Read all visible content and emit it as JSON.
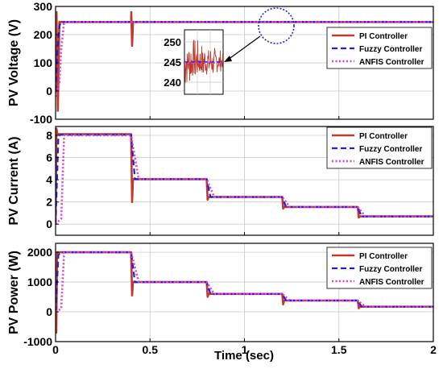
{
  "colors": {
    "pi": "#c0392b",
    "fuzzy": "#1f1fd6",
    "anfis": "#d63fe0",
    "grid": "#c8c8c8",
    "zoom_circle": "#1f1fd6"
  },
  "x_axis": {
    "label": "Time (sec)",
    "ticks": [
      "0",
      "0.5",
      "1",
      "1.5",
      "2"
    ],
    "range": [
      0,
      2
    ]
  },
  "chart_data": [
    {
      "type": "line",
      "ylabel": "PV Voltage (V)",
      "ylim": [
        -100,
        300
      ],
      "yticks": [
        "300",
        "200",
        "100",
        "0",
        "-100"
      ],
      "grid": true,
      "legend_position": "right",
      "series": [
        {
          "name": "PI Controller",
          "style": "solid",
          "x": [
            0,
            0.005,
            0.012,
            0.02,
            0.4,
            0.401,
            0.405,
            0.41,
            2.0
          ],
          "values": [
            0,
            280,
            -70,
            245,
            245,
            280,
            160,
            245,
            245
          ]
        },
        {
          "name": "Fuzzy Controller",
          "style": "dashed",
          "x": [
            0,
            0.01,
            0.02,
            0.03,
            2.0
          ],
          "values": [
            0,
            150,
            230,
            245,
            245
          ]
        },
        {
          "name": "ANFIS Controller",
          "style": "dotted",
          "x": [
            0,
            0.02,
            0.03,
            0.045,
            2.0
          ],
          "values": [
            -20,
            30,
            150,
            245,
            245
          ]
        }
      ],
      "inset": {
        "yticks": [
          "250",
          "245",
          "240"
        ],
        "ylim": [
          237,
          253
        ],
        "center": 245
      }
    },
    {
      "type": "line",
      "ylabel": "PV Current (A)",
      "ylim": [
        -1,
        8.8
      ],
      "yticks": [
        "8",
        "6",
        "4",
        "2",
        "0"
      ],
      "grid": true,
      "legend_position": "top-right",
      "series": [
        {
          "name": "PI Controller",
          "style": "solid",
          "x": [
            0,
            0.005,
            0.01,
            0.4,
            0.405,
            0.41,
            0.8,
            0.805,
            0.81,
            1.2,
            1.205,
            1.21,
            1.6,
            1.605,
            1.61,
            2.0
          ],
          "values": [
            0,
            8.6,
            8.1,
            8.1,
            2.0,
            4.05,
            4.05,
            2.2,
            2.45,
            2.45,
            1.4,
            1.55,
            1.55,
            0.6,
            0.7,
            0.7
          ]
        },
        {
          "name": "Fuzzy Controller",
          "style": "dashed",
          "x": [
            0,
            0.015,
            0.025,
            0.4,
            0.42,
            0.8,
            0.82,
            1.2,
            1.22,
            1.6,
            1.62,
            2.0
          ],
          "values": [
            0,
            7.9,
            8.05,
            8.05,
            4.05,
            4.05,
            2.45,
            2.45,
            1.55,
            1.55,
            0.7,
            0.7
          ]
        },
        {
          "name": "ANFIS Controller",
          "style": "dotted",
          "x": [
            0,
            0.03,
            0.045,
            0.4,
            0.44,
            0.8,
            0.84,
            1.2,
            1.24,
            1.6,
            1.64,
            2.0
          ],
          "values": [
            0,
            0.5,
            8.0,
            8.0,
            4.05,
            4.05,
            2.45,
            2.45,
            1.55,
            1.55,
            0.7,
            0.7
          ]
        }
      ]
    },
    {
      "type": "line",
      "ylabel": "PV Power (W)",
      "ylim": [
        -1000,
        2300
      ],
      "yticks": [
        "2000",
        "1000",
        "0",
        "-1000"
      ],
      "grid": true,
      "legend_position": "top-right",
      "series": [
        {
          "name": "PI Controller",
          "style": "solid",
          "x": [
            0,
            0.004,
            0.008,
            0.015,
            0.4,
            0.405,
            0.41,
            0.8,
            0.805,
            0.81,
            1.2,
            1.205,
            1.21,
            1.6,
            1.605,
            1.61,
            2.0
          ],
          "values": [
            0,
            -700,
            2000,
            2000,
            2000,
            550,
            1000,
            1000,
            500,
            600,
            600,
            250,
            380,
            380,
            120,
            170,
            170
          ]
        },
        {
          "name": "Fuzzy Controller",
          "style": "dashed",
          "x": [
            0,
            0.015,
            0.025,
            0.4,
            0.42,
            0.8,
            0.82,
            1.2,
            1.22,
            1.6,
            1.62,
            2.0
          ],
          "values": [
            0,
            1900,
            2000,
            2000,
            1000,
            1000,
            600,
            600,
            380,
            380,
            170,
            170
          ]
        },
        {
          "name": "ANFIS Controller",
          "style": "dotted",
          "x": [
            0,
            0.03,
            0.045,
            0.4,
            0.44,
            0.8,
            0.84,
            1.2,
            1.24,
            1.6,
            1.64,
            2.0
          ],
          "values": [
            0,
            100,
            2000,
            2000,
            1000,
            1000,
            600,
            600,
            380,
            380,
            170,
            170
          ]
        }
      ]
    }
  ]
}
